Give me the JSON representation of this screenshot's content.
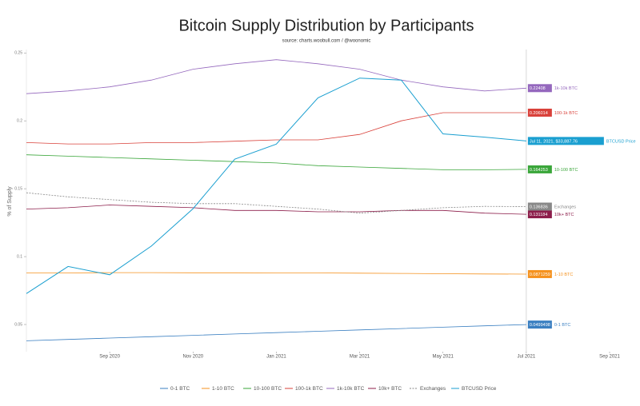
{
  "chart_data": {
    "type": "line",
    "title": "Bitcoin Supply Distribution by Participants",
    "subtitle": "source: charts.woobull.com / @woonomic",
    "ylabel": "% of Supply",
    "x": [
      "2020-07",
      "2020-08",
      "2020-09",
      "2020-10",
      "2020-11",
      "2020-12",
      "2021-01",
      "2021-02",
      "2021-03",
      "2021-04",
      "2021-05",
      "2021-06",
      "2021-07"
    ],
    "xlim": [
      "2020-07",
      "2021-09"
    ],
    "xticks": [
      {
        "value": "2020-09",
        "label": "Sep 2020"
      },
      {
        "value": "2020-11",
        "label": "Nov 2020"
      },
      {
        "value": "2021-01",
        "label": "Jan 2021"
      },
      {
        "value": "2021-03",
        "label": "Mar 2021"
      },
      {
        "value": "2021-05",
        "label": "May 2021"
      },
      {
        "value": "2021-07",
        "label": "Jul 2021"
      },
      {
        "value": "2021-09",
        "label": "Sep 2021"
      }
    ],
    "ylim": [
      0.03,
      0.2525
    ],
    "yticks": [
      0.05,
      0.1,
      0.15,
      0.2,
      0.25
    ],
    "y2lim": [
      5600,
      74000
    ],
    "y2log": true,
    "annotation": "Jul 11, 2021, $33,887.76",
    "legend": "bottom",
    "series": [
      {
        "name": "0-1 BTC",
        "color": "#3a7fc1",
        "values": [
          0.038,
          0.039,
          0.04,
          0.041,
          0.042,
          0.043,
          0.044,
          0.045,
          0.046,
          0.047,
          0.048,
          0.049,
          0.0499498
        ]
      },
      {
        "name": "1-10 BTC",
        "color": "#f5921f",
        "values": [
          0.088,
          0.088,
          0.0882,
          0.0882,
          0.0881,
          0.0881,
          0.088,
          0.088,
          0.0878,
          0.0876,
          0.0874,
          0.0872,
          0.0871259
        ]
      },
      {
        "name": "10-100 BTC",
        "color": "#3aa63a",
        "values": [
          0.175,
          0.174,
          0.173,
          0.172,
          0.171,
          0.17,
          0.169,
          0.167,
          0.166,
          0.165,
          0.164,
          0.164,
          0.164253
        ]
      },
      {
        "name": "100-1k BTC",
        "color": "#d9413a",
        "values": [
          0.184,
          0.183,
          0.183,
          0.184,
          0.184,
          0.185,
          0.186,
          0.186,
          0.19,
          0.2,
          0.206,
          0.206,
          0.206014
        ]
      },
      {
        "name": "1k-10k BTC",
        "color": "#9467bd",
        "values": [
          0.22,
          0.222,
          0.225,
          0.23,
          0.238,
          0.242,
          0.245,
          0.242,
          0.238,
          0.23,
          0.225,
          0.222,
          0.22408
        ]
      },
      {
        "name": "10k+ BTC",
        "color": "#8c1d4a",
        "values": [
          0.135,
          0.136,
          0.138,
          0.137,
          0.136,
          0.134,
          0.134,
          0.133,
          0.133,
          0.134,
          0.134,
          0.132,
          0.131184
        ]
      },
      {
        "name": "Exchanges",
        "color": "#888888",
        "dashed": true,
        "values": [
          0.147,
          0.144,
          0.142,
          0.14,
          0.139,
          0.139,
          0.137,
          0.135,
          0.132,
          0.134,
          0.136,
          0.137,
          0.136836
        ]
      },
      {
        "name": "BTCUSD Price",
        "color": "#1a9fd0",
        "axis": "y2",
        "values": [
          9200,
          11600,
          10800,
          13800,
          19000,
          29000,
          33000,
          49000,
          58000,
          57000,
          36000,
          35000,
          33887.76
        ]
      }
    ]
  }
}
